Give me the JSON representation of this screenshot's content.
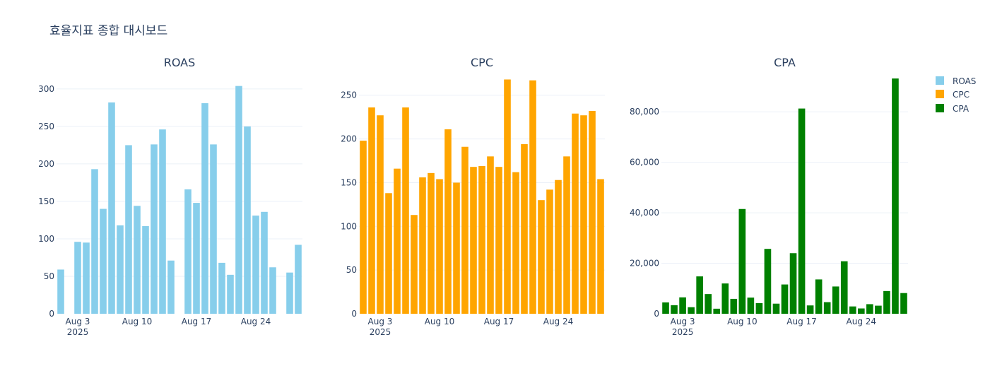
{
  "dashboard": {
    "title": "효율지표 종합 대시보드"
  },
  "legend": [
    {
      "label": "ROAS",
      "color": "#87CEEB"
    },
    {
      "label": "CPC",
      "color": "#FFA500"
    },
    {
      "label": "CPA",
      "color": "#008000"
    }
  ],
  "chart_data": [
    {
      "type": "bar",
      "title": "ROAS",
      "color": "#87CEEB",
      "x_start_day": 1,
      "x_ticks": [
        {
          "day": 3,
          "label": "Aug 3",
          "sublabel": "2025"
        },
        {
          "day": 10,
          "label": "Aug 10",
          "sublabel": ""
        },
        {
          "day": 17,
          "label": "Aug 17",
          "sublabel": ""
        },
        {
          "day": 24,
          "label": "Aug 24",
          "sublabel": ""
        }
      ],
      "values": [
        59,
        0,
        96,
        95,
        193,
        140,
        282,
        118,
        225,
        144,
        117,
        226,
        246,
        71,
        0,
        166,
        148,
        281,
        226,
        68,
        52,
        304,
        250,
        131,
        136,
        62,
        0,
        55,
        92
      ],
      "ylim": [
        0,
        315
      ],
      "y_ticks": [
        0,
        50,
        100,
        150,
        200,
        250,
        300
      ],
      "y_tick_labels": [
        "0",
        "50",
        "100",
        "150",
        "200",
        "250",
        "300"
      ]
    },
    {
      "type": "bar",
      "title": "CPC",
      "color": "#FFA500",
      "x_start_day": 1,
      "x_ticks": [
        {
          "day": 3,
          "label": "Aug 3",
          "sublabel": "2025"
        },
        {
          "day": 10,
          "label": "Aug 10",
          "sublabel": ""
        },
        {
          "day": 17,
          "label": "Aug 17",
          "sublabel": ""
        },
        {
          "day": 24,
          "label": "Aug 24",
          "sublabel": ""
        }
      ],
      "values": [
        198,
        236,
        227,
        138,
        166,
        236,
        113,
        156,
        161,
        154,
        211,
        150,
        191,
        168,
        169,
        180,
        168,
        268,
        162,
        194,
        267,
        130,
        142,
        153,
        180,
        229,
        227,
        232,
        154
      ],
      "ylim": [
        0,
        270
      ],
      "y_ticks": [
        0,
        50,
        100,
        150,
        200,
        250
      ],
      "y_tick_labels": [
        "0",
        "50",
        "100",
        "150",
        "200",
        "250"
      ]
    },
    {
      "type": "bar",
      "title": "CPA",
      "color": "#008000",
      "x_start_day": 1,
      "x_ticks": [
        {
          "day": 3,
          "label": "Aug 3",
          "sublabel": "2025"
        },
        {
          "day": 10,
          "label": "Aug 10",
          "sublabel": ""
        },
        {
          "day": 17,
          "label": "Aug 17",
          "sublabel": ""
        },
        {
          "day": 24,
          "label": "Aug 24",
          "sublabel": ""
        }
      ],
      "values": [
        4500,
        3400,
        6500,
        2600,
        14800,
        7800,
        2000,
        12000,
        5900,
        41500,
        6400,
        4200,
        25700,
        4000,
        11600,
        24000,
        81300,
        3300,
        13600,
        4600,
        10800,
        20800,
        2900,
        2100,
        3800,
        3200,
        9000,
        93200,
        8200
      ],
      "ylim": [
        0,
        93500
      ],
      "y_ticks": [
        0,
        20000,
        40000,
        60000,
        80000
      ],
      "y_tick_labels": [
        "0",
        "20,000",
        "40,000",
        "60,000",
        "80,000"
      ]
    }
  ]
}
